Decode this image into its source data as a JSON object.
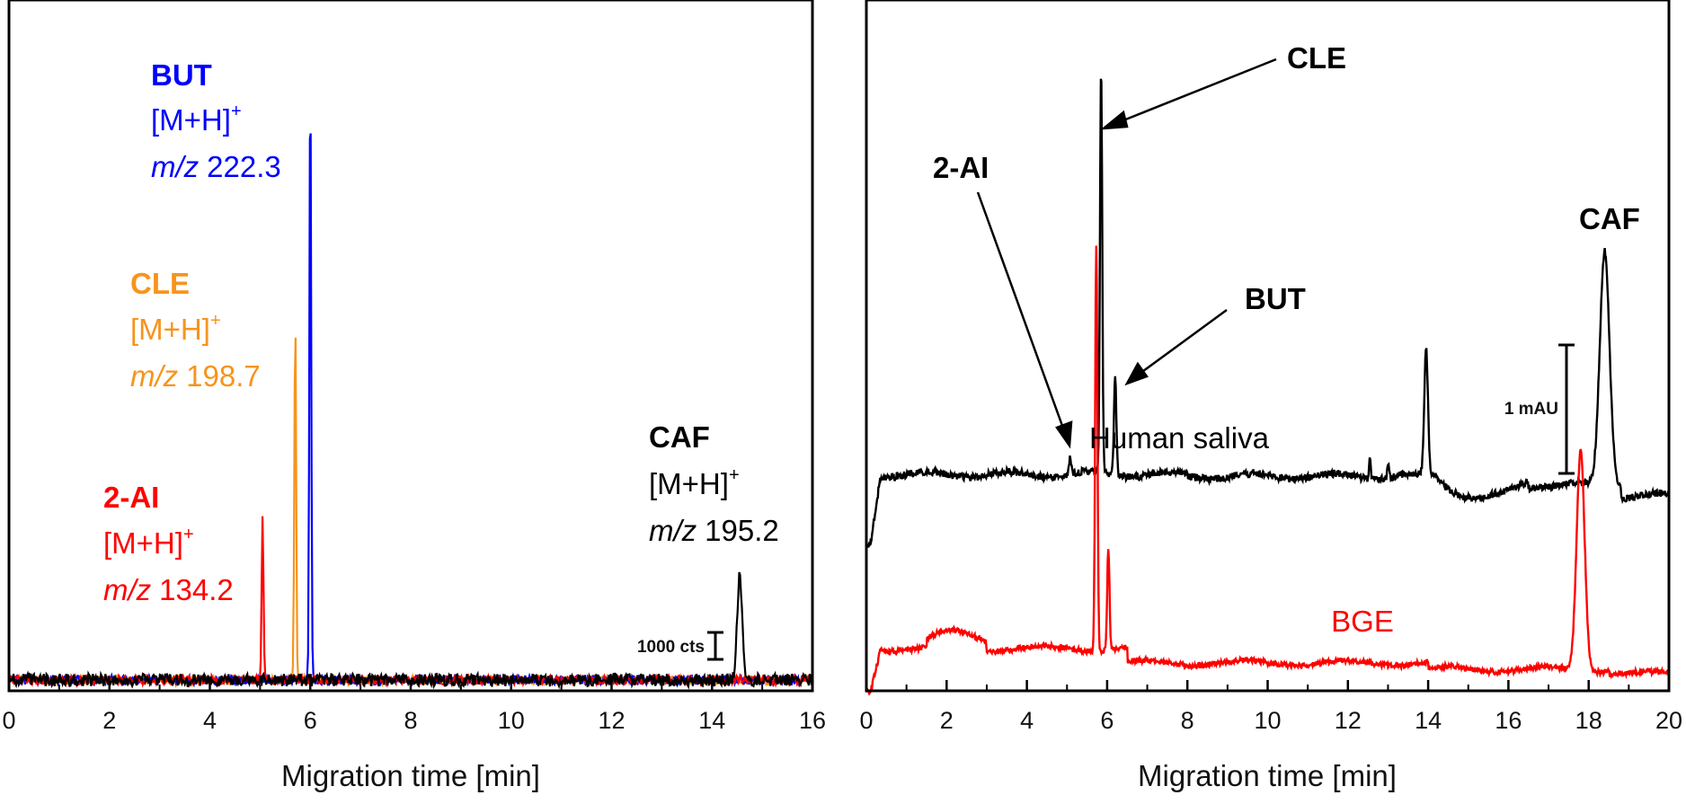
{
  "chart_data": [
    {
      "type": "line",
      "panel": "left",
      "xlabel": "Migration time [min]",
      "xlim": [
        0,
        16
      ],
      "xticks": [
        "0",
        "2",
        "4",
        "6",
        "8",
        "10",
        "12",
        "14",
        "16"
      ],
      "scale_bar": "1000 cts",
      "colors": {
        "2-AI": "#ff0000",
        "CLE": "#f7941d",
        "BUT": "#0000ff",
        "CAF": "#000000"
      },
      "series": [
        {
          "name": "2-AI",
          "color": "#ff0000",
          "ion": "[M+H]",
          "charge": "+",
          "mz_prefix": "m/z",
          "mz": "134.2",
          "peak_x": 5.05,
          "peak_height_rel": 0.27
        },
        {
          "name": "CLE",
          "color": "#f7941d",
          "ion": "[M+H]",
          "charge": "+",
          "mz_prefix": "m/z",
          "mz": "198.7",
          "peak_x": 5.7,
          "peak_height_rel": 0.59
        },
        {
          "name": "BUT",
          "color": "#0000ff",
          "ion": "[M+H]",
          "charge": "+",
          "mz_prefix": "m/z",
          "mz": "222.3",
          "peak_x": 6.0,
          "peak_height_rel": 1.0
        },
        {
          "name": "CAF",
          "color": "#000000",
          "ion": "[M+H]",
          "charge": "+",
          "mz_prefix": "m/z",
          "mz": "195.2",
          "peak_x": 14.55,
          "peak_height_rel": 0.17
        }
      ]
    },
    {
      "type": "line",
      "panel": "right",
      "xlabel": "Migration time [min]",
      "xlim": [
        0,
        20
      ],
      "xticks": [
        "0",
        "2",
        "4",
        "6",
        "8",
        "10",
        "12",
        "14",
        "16",
        "18",
        "20"
      ],
      "scale_bar": "1 mAU",
      "series": [
        {
          "name": "Human saliva",
          "color": "#000000"
        },
        {
          "name": "BGE",
          "color": "#ff0000"
        }
      ],
      "annotations": [
        {
          "text": "CLE",
          "target_x": 5.85
        },
        {
          "text": "2-AI",
          "target_x": 5.1
        },
        {
          "text": "BUT",
          "target_x": 6.3
        },
        {
          "text": "CAF",
          "target_x": 18.4
        }
      ]
    }
  ]
}
